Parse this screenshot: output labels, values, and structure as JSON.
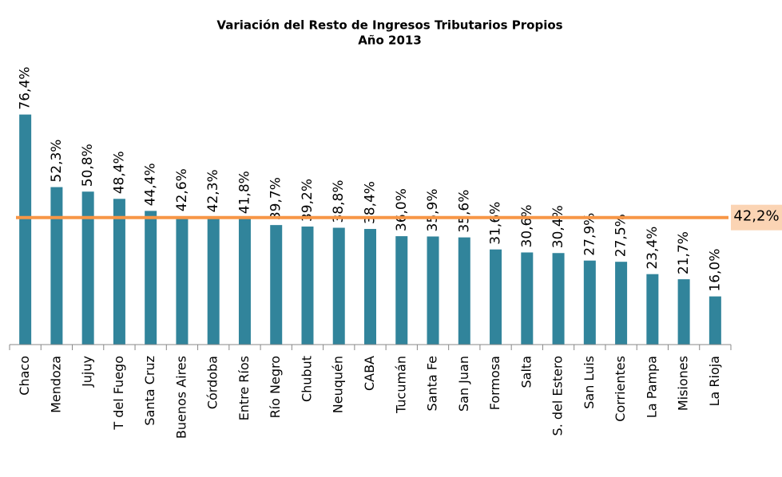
{
  "chart_data": {
    "type": "bar",
    "title": "Variación del Resto de Ingresos Tributarios Propios",
    "subtitle": "Año 2013",
    "categories": [
      "Chaco",
      "Mendoza",
      "Jujuy",
      "T del Fuego",
      "Santa Cruz",
      "Buenos Aires",
      "Córdoba",
      "Entre Ríos",
      "Río Negro",
      "Chubut",
      "Neuquén",
      "CABA",
      "Tucumán",
      "Santa Fe",
      "San Juan",
      "Formosa",
      "Salta",
      "S. del Estero",
      "San Luis",
      "Corrientes",
      "La Pampa",
      "Misiones",
      "La Rioja"
    ],
    "values": [
      76.4,
      52.3,
      50.8,
      48.4,
      44.4,
      42.6,
      42.3,
      41.8,
      39.7,
      39.2,
      38.8,
      38.4,
      36.0,
      35.9,
      35.6,
      31.6,
      30.6,
      30.4,
      27.9,
      27.5,
      23.4,
      21.7,
      16.0
    ],
    "value_labels": [
      "76,4%",
      "52,3%",
      "50,8%",
      "48,4%",
      "44,4%",
      "42,6%",
      "42,3%",
      "41,8%",
      "39,7%",
      "39,2%",
      "38,8%",
      "38,4%",
      "36,0%",
      "35,9%",
      "35,6%",
      "31,6%",
      "30,6%",
      "30,4%",
      "27,9%",
      "27,5%",
      "23,4%",
      "21,7%",
      "16,0%"
    ],
    "color": "#31849b",
    "ylim": [
      0,
      80
    ],
    "reference_line": {
      "value": 42.2,
      "label": "42,2%",
      "color": "#f79646",
      "label_background": "#fbd4b4"
    }
  }
}
